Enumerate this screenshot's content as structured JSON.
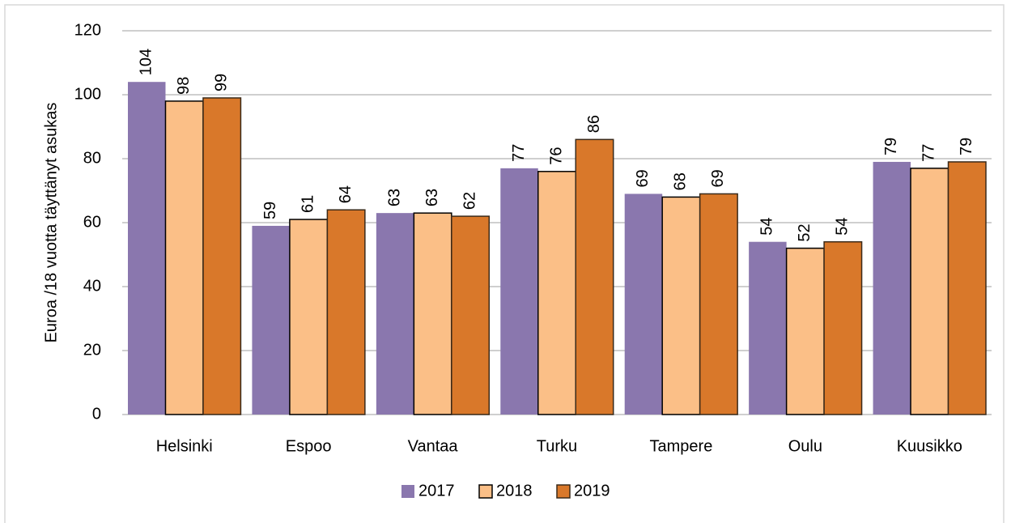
{
  "chart_data": {
    "type": "bar",
    "y_label": "Euroa /18 vuotta täyttänyt asukas",
    "categories": [
      "Helsinki",
      "Espoo",
      "Vantaa",
      "Turku",
      "Tampere",
      "Oulu",
      "Kuusikko"
    ],
    "series": [
      {
        "name": "2017",
        "color": "#8a77ae",
        "values": [
          104,
          59,
          63,
          77,
          69,
          54,
          79
        ]
      },
      {
        "name": "2018",
        "color": "#fbbf87",
        "edgecolor": "#000000",
        "values": [
          98,
          61,
          63,
          76,
          68,
          52,
          77
        ]
      },
      {
        "name": "2019",
        "color": "#d9782a",
        "edgecolor": "#3a2a1a",
        "values": [
          99,
          64,
          62,
          86,
          69,
          54,
          79
        ]
      }
    ],
    "ylim": [
      0,
      120
    ],
    "yticks": [
      0,
      20,
      40,
      60,
      80,
      100,
      120
    ],
    "grid": true,
    "legend": "bottom"
  }
}
